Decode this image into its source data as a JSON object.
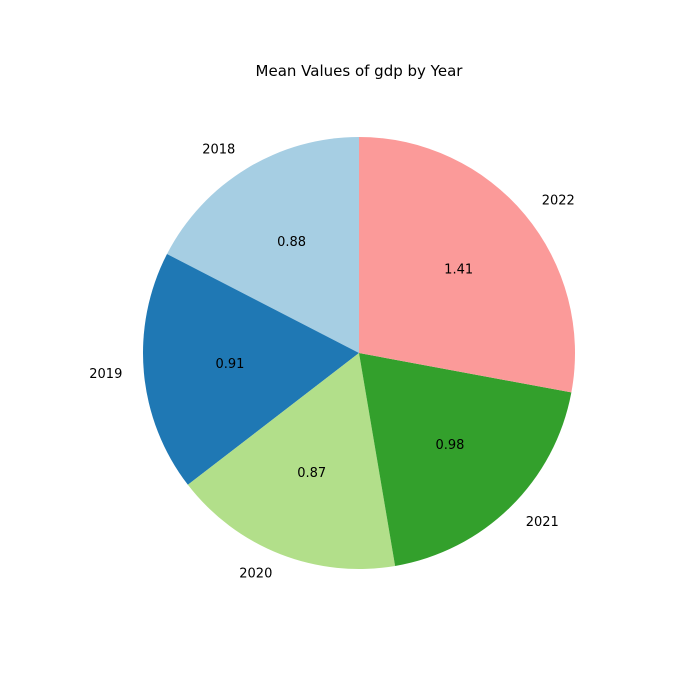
{
  "chart_data": {
    "type": "pie",
    "title": "Mean Values of gdp by Year",
    "categories": [
      "2018",
      "2019",
      "2020",
      "2021",
      "2022"
    ],
    "values": [
      0.88,
      0.91,
      0.87,
      0.98,
      1.41
    ],
    "value_labels": [
      "0.88",
      "0.91",
      "0.87",
      "0.98",
      "1.41"
    ],
    "colors": [
      "#a6cee3",
      "#1f78b4",
      "#b2df8a",
      "#33a02c",
      "#fb9a99"
    ],
    "start_angle_deg": 90,
    "direction": "counterclockwise"
  }
}
